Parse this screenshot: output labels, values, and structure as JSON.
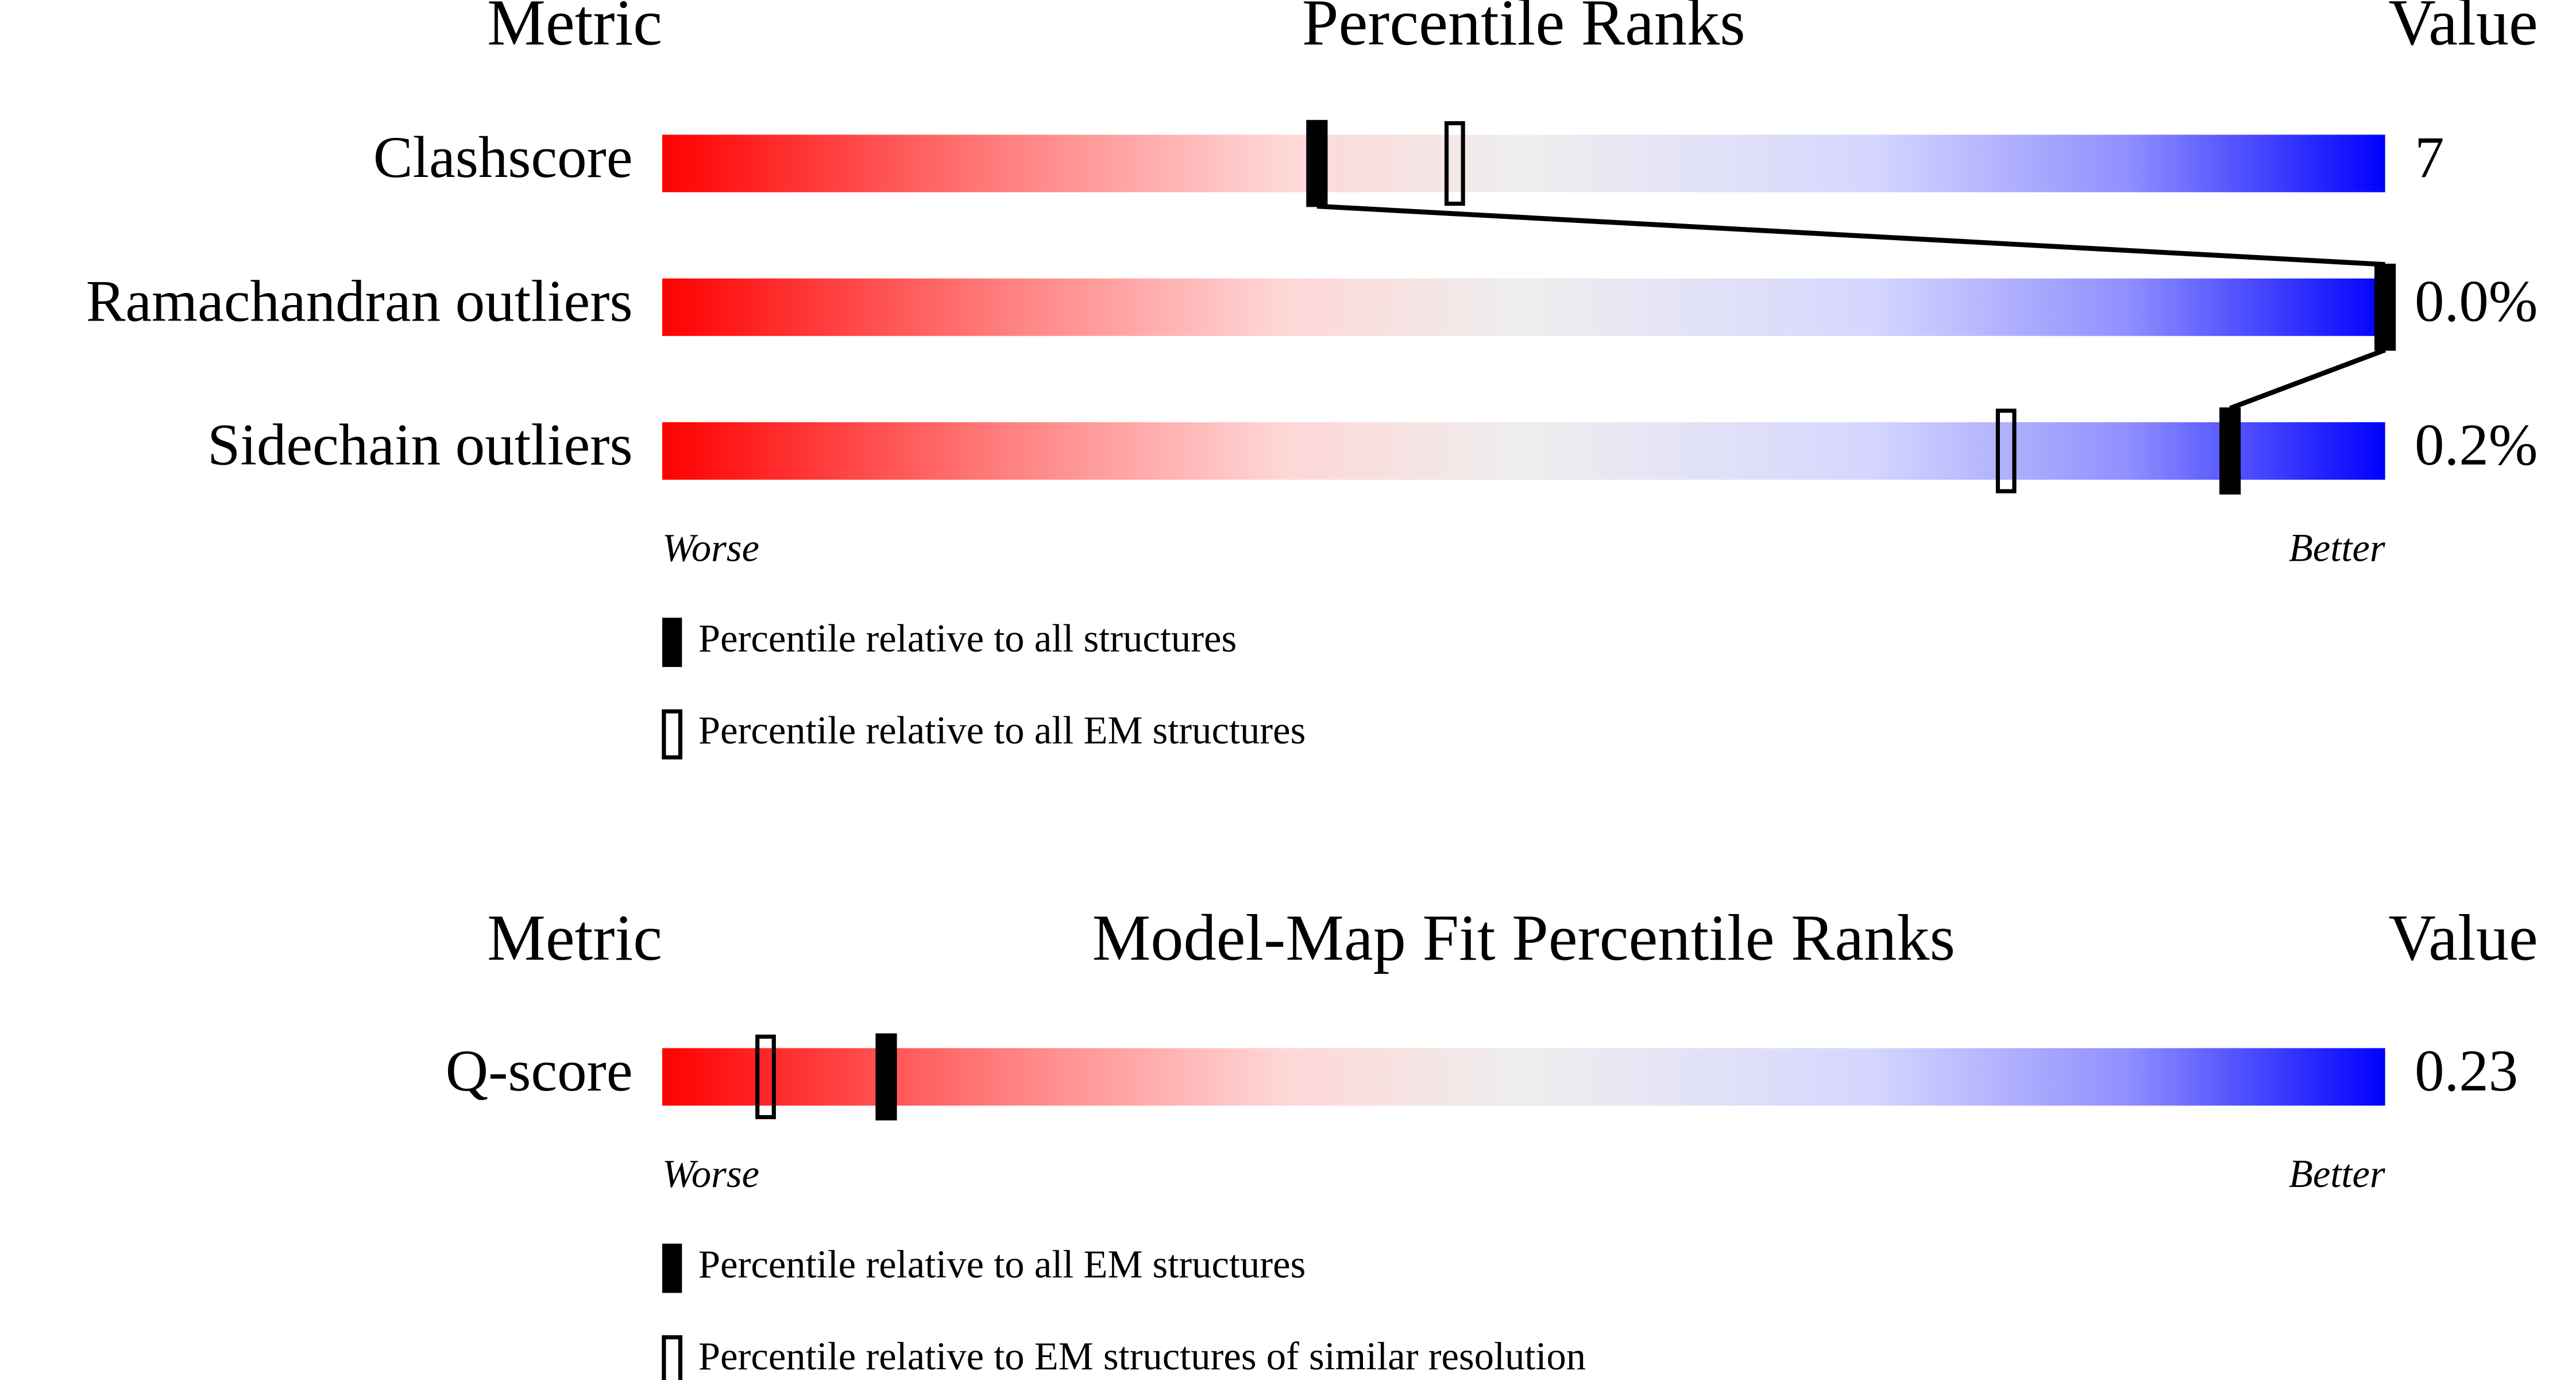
{
  "chart_data": [
    {
      "type": "slider",
      "title": "Percentile Ranks",
      "metric_header": "Metric",
      "value_header": "Value",
      "worse_label": "Worse",
      "better_label": "Better",
      "xlim": [
        0,
        100
      ],
      "metrics": [
        "Clashscore",
        "Ramachandran outliers",
        "Sidechain outliers"
      ],
      "metric_values": [
        "7",
        "0.0%",
        "0.2%"
      ],
      "series": [
        {
          "name": "Percentile relative to all structures",
          "style": "filled",
          "color": "#000000",
          "values": [
            38,
            100,
            91
          ]
        },
        {
          "name": "Percentile relative to all EM structures",
          "style": "open",
          "color": "#000000",
          "values": [
            46,
            null,
            78
          ]
        }
      ]
    },
    {
      "type": "slider",
      "title": "Model-Map Fit Percentile Ranks",
      "metric_header": "Metric",
      "value_header": "Value",
      "worse_label": "Worse",
      "better_label": "Better",
      "xlim": [
        0,
        100
      ],
      "metrics": [
        "Q-score"
      ],
      "metric_values": [
        "0.23"
      ],
      "series": [
        {
          "name": "Percentile relative to all EM structures",
          "style": "filled",
          "color": "#000000",
          "values": [
            13
          ]
        },
        {
          "name": "Percentile relative to EM structures of similar resolution",
          "style": "open",
          "color": "#000000",
          "values": [
            6
          ]
        }
      ]
    }
  ]
}
